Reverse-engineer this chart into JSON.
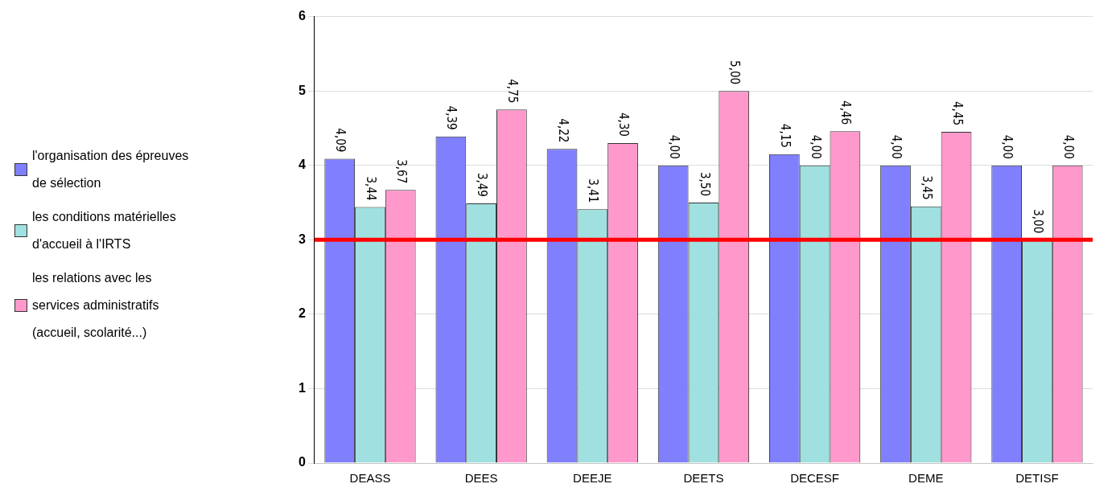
{
  "chart_data": {
    "type": "bar",
    "categories": [
      "DEASS",
      "DEES",
      "DEEJE",
      "DEETS",
      "DECESF",
      "DEME",
      "DETISF"
    ],
    "series": [
      {
        "name": "l'organisation des épreuves de sélection",
        "color": "#8080ff",
        "values": [
          4.09,
          4.39,
          4.22,
          4.0,
          4.15,
          4.0,
          4.0
        ],
        "value_labels": [
          "4,09",
          "4,39",
          "4,22",
          "4,00",
          "4,15",
          "4,00",
          "4,00"
        ]
      },
      {
        "name": "les conditions matérielles d'accueil à l'IRTS",
        "color": "#a0e0e0",
        "values": [
          3.44,
          3.49,
          3.41,
          3.5,
          4.0,
          3.45,
          3.0
        ],
        "value_labels": [
          "3,44",
          "3,49",
          "3,41",
          "3,50",
          "4,00",
          "3,45",
          "3,00"
        ]
      },
      {
        "name": "les relations avec les services administratifs (accueil, scolarité...)",
        "color": "#ff99cc",
        "values": [
          3.67,
          4.75,
          4.3,
          5.0,
          4.46,
          4.45,
          4.0
        ],
        "value_labels": [
          "3,67",
          "4,75",
          "4,30",
          "5,00",
          "4,46",
          "4,45",
          "4,00"
        ]
      }
    ],
    "ylim": [
      0,
      6
    ],
    "yticks": [
      0,
      1,
      2,
      3,
      4,
      5,
      6
    ],
    "grid": "y",
    "legend": "left",
    "ref_lines": [
      {
        "axis": "y",
        "value": 3,
        "color": "#ff0000"
      }
    ]
  }
}
